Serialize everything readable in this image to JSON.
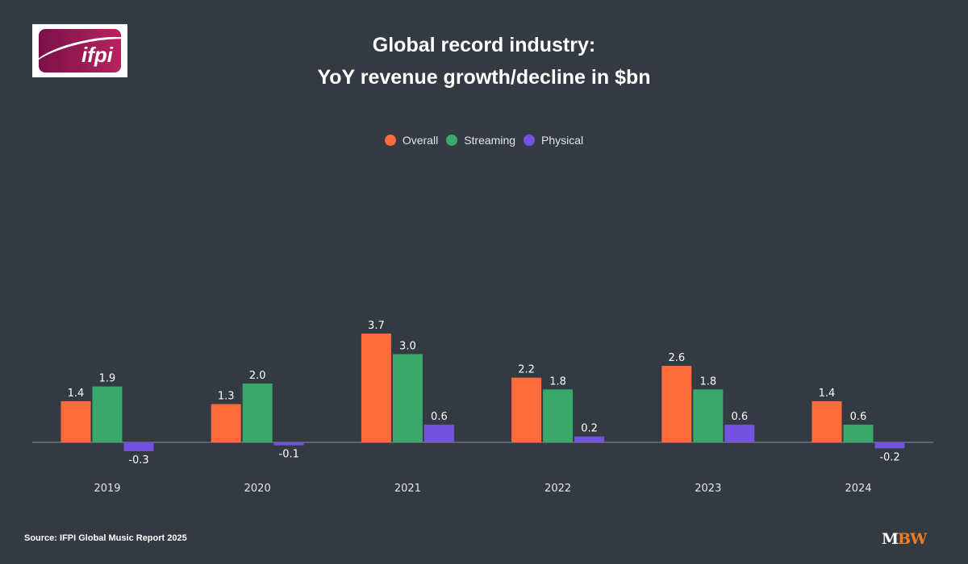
{
  "logo_text": "ifpi",
  "chart_data": {
    "type": "bar",
    "title": [
      "Global record industry:",
      "YoY revenue growth/decline in $bn"
    ],
    "categories": [
      "2019",
      "2020",
      "2021",
      "2022",
      "2023",
      "2024"
    ],
    "series": [
      {
        "name": "Overall",
        "color": "#ff6b3b",
        "values": [
          1.4,
          1.3,
          3.7,
          2.2,
          2.6,
          1.4
        ]
      },
      {
        "name": "Streaming",
        "color": "#3aa86b",
        "values": [
          1.9,
          2.0,
          3.0,
          1.8,
          1.8,
          0.6
        ]
      },
      {
        "name": "Physical",
        "color": "#7452e0",
        "values": [
          -0.3,
          -0.1,
          0.6,
          0.2,
          0.6,
          -0.2
        ]
      }
    ],
    "legend_position": "top-center",
    "grid": false,
    "ylim": [
      -0.3,
      3.7
    ]
  },
  "source": "Source: IFPI Global Music Report 2025",
  "brand": {
    "m": "M",
    "bw": "BW",
    "m_color": "#ffffff",
    "bw_color": "#f47b20"
  }
}
